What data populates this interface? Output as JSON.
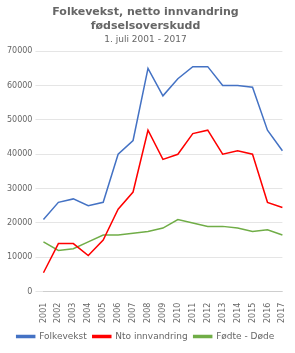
{
  "chart_data": {
    "type": "line",
    "title": "Folkevekst, netto innvandring\nfødselsoverskudd",
    "subtitle": "1. juli 2001 - 2017",
    "categories": [
      2001,
      2002,
      2003,
      2004,
      2005,
      2006,
      2007,
      2008,
      2009,
      2010,
      2011,
      2012,
      2013,
      2014,
      2015,
      2016,
      2017
    ],
    "series": [
      {
        "name": "Folkevekst",
        "color": "#4472C4",
        "values": [
          21000,
          26000,
          27000,
          25000,
          26000,
          40000,
          44000,
          65000,
          57000,
          62000,
          65500,
          65500,
          60000,
          60000,
          59500,
          47000,
          41000
        ]
      },
      {
        "name": "Nto innvandring",
        "color": "#FF0000",
        "values": [
          5500,
          14000,
          14000,
          10500,
          15000,
          24000,
          29000,
          47000,
          38500,
          40000,
          46000,
          47000,
          40000,
          41000,
          40000,
          26000,
          24500
        ]
      },
      {
        "name": "Fødte - Døde",
        "color": "#70AD47",
        "values": [
          14500,
          12000,
          12500,
          14500,
          16500,
          16500,
          17000,
          17500,
          18500,
          21000,
          20000,
          19000,
          19000,
          18500,
          17500,
          18000,
          16500
        ]
      }
    ],
    "ylim": [
      0,
      70000
    ],
    "yticks": [
      0,
      10000,
      20000,
      30000,
      40000,
      50000,
      60000,
      70000
    ],
    "grid": true,
    "legend": "bottom"
  }
}
